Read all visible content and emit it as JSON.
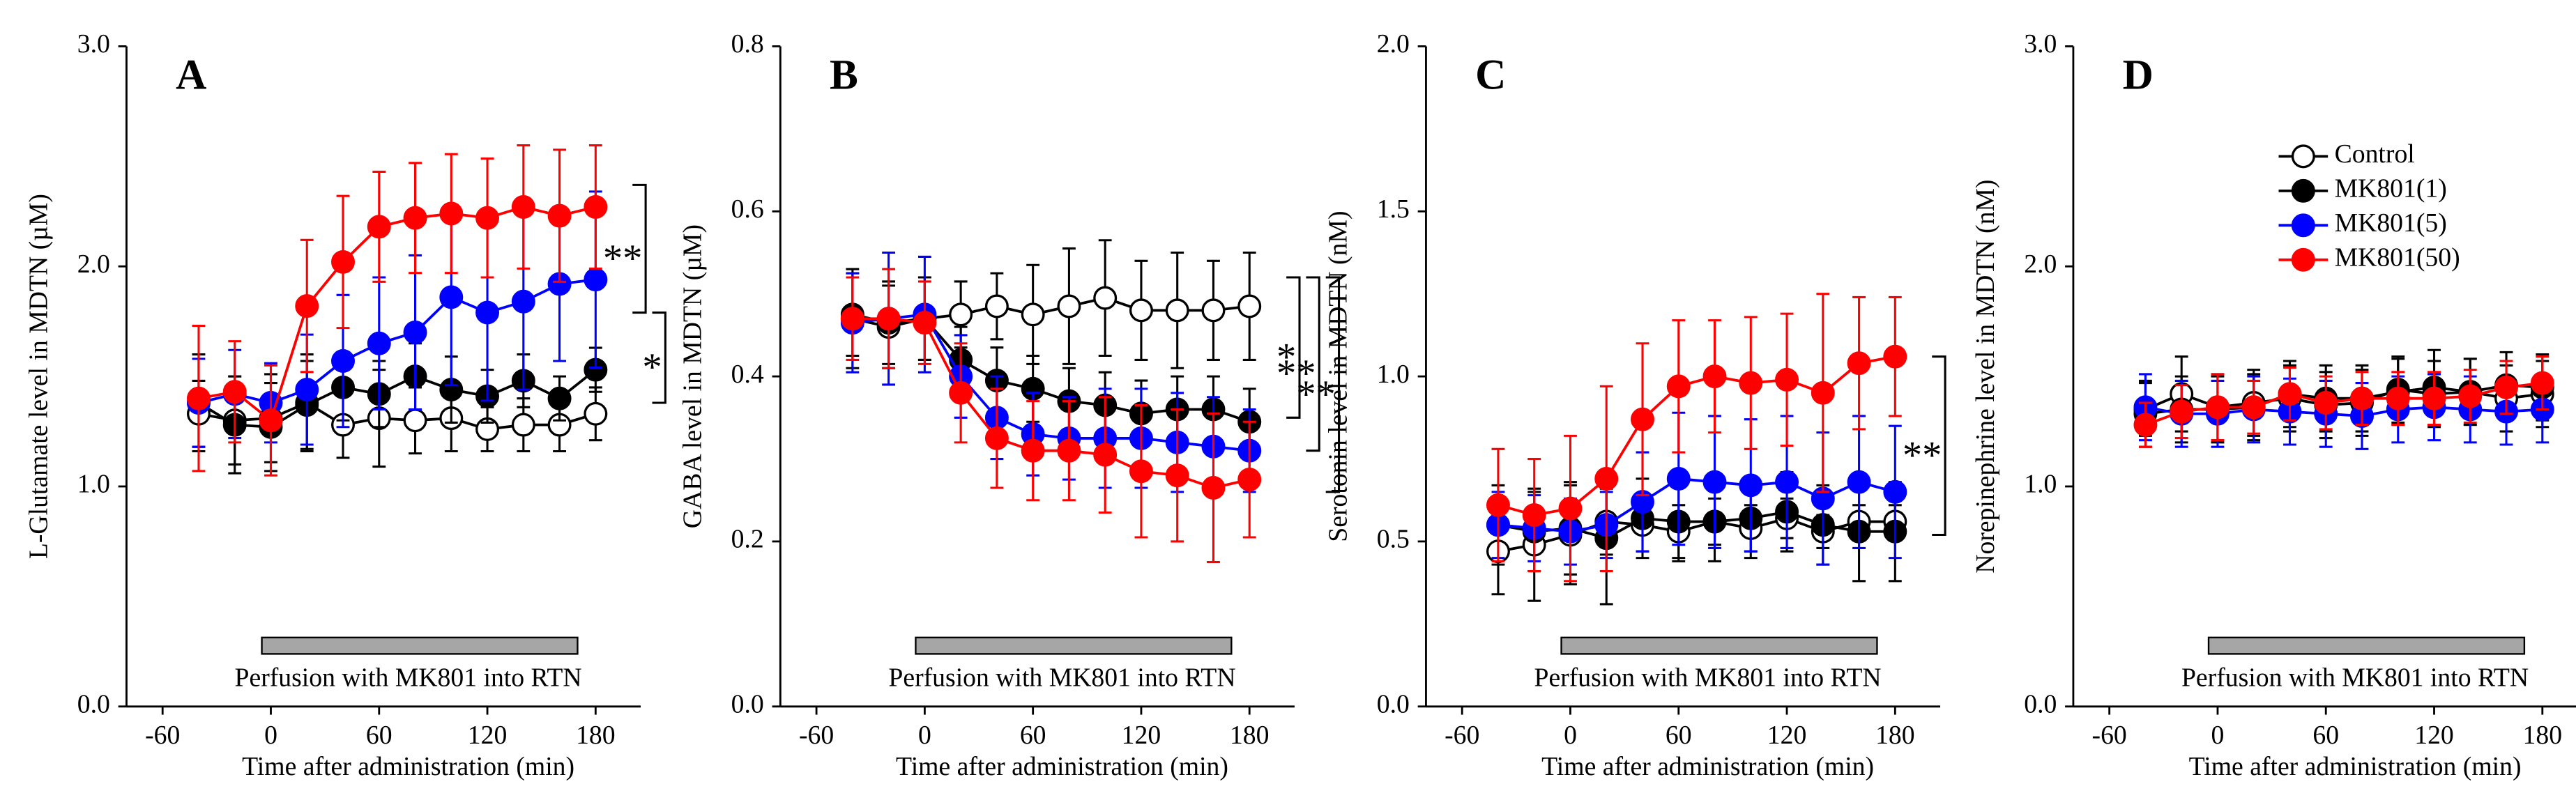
{
  "chart_data": [
    {
      "type": "line",
      "label": "A",
      "ylabel": "L-Glutamate level in MDTN (µM)",
      "xlabel": "Time after administration (min)",
      "x": [
        -40,
        -20,
        0,
        20,
        40,
        60,
        80,
        100,
        120,
        140,
        160,
        180
      ],
      "xlim": [
        -80,
        205
      ],
      "xticks": [
        -60,
        0,
        60,
        120,
        180
      ],
      "ylim": [
        0,
        3
      ],
      "yticks": [
        {
          "value": 0,
          "label": "0.0"
        },
        {
          "value": 1,
          "label": "1.0"
        },
        {
          "value": 2,
          "label": "2.0"
        },
        {
          "value": 3,
          "label": "3.0"
        }
      ],
      "series": [
        {
          "color": "#000000",
          "marker_fill": "#ffffff",
          "values": [
            1.33,
            1.3,
            1.31,
            1.38,
            1.28,
            1.31,
            1.3,
            1.31,
            1.26,
            1.28,
            1.28,
            1.33
          ],
          "errors": [
            0.15,
            0.2,
            0.2,
            0.22,
            0.15,
            0.22,
            0.15,
            0.15,
            0.1,
            0.12,
            0.12,
            0.12
          ]
        },
        {
          "color": "#000000",
          "marker_fill": "#000000",
          "values": [
            1.38,
            1.28,
            1.27,
            1.37,
            1.45,
            1.42,
            1.5,
            1.44,
            1.41,
            1.48,
            1.4,
            1.53
          ],
          "errors": [
            0.22,
            0.22,
            0.2,
            0.2,
            0.15,
            0.15,
            0.15,
            0.15,
            0.12,
            0.12,
            0.1,
            0.1
          ]
        },
        {
          "color": "#0000ff",
          "marker_fill": "#0000ff",
          "values": [
            1.38,
            1.42,
            1.38,
            1.44,
            1.57,
            1.65,
            1.7,
            1.86,
            1.79,
            1.84,
            1.92,
            1.94
          ],
          "errors": [
            0.2,
            0.2,
            0.18,
            0.25,
            0.3,
            0.3,
            0.35,
            0.4,
            0.4,
            0.4,
            0.35,
            0.4
          ]
        },
        {
          "color": "#ff0000",
          "marker_fill": "#ff0000",
          "values": [
            1.4,
            1.43,
            1.3,
            1.82,
            2.02,
            2.18,
            2.22,
            2.24,
            2.22,
            2.27,
            2.23,
            2.27
          ],
          "errors": [
            0.33,
            0.23,
            0.25,
            0.3,
            0.3,
            0.25,
            0.25,
            0.27,
            0.27,
            0.28,
            0.3,
            0.28
          ]
        }
      ],
      "perfusion": {
        "range": [
          -5,
          170
        ],
        "label": "Perfusion with MK801 into RTN"
      },
      "significance": [
        {
          "text": "**",
          "y": [
            2.37,
            1.79
          ]
        },
        {
          "text": "*",
          "y": [
            1.79,
            1.38
          ]
        }
      ]
    },
    {
      "type": "line",
      "label": "B",
      "ylabel": "GABA level in MDTN (µM)",
      "xlabel": "Time after administration (min)",
      "x": [
        -40,
        -20,
        0,
        20,
        40,
        60,
        80,
        100,
        120,
        140,
        160,
        180
      ],
      "xlim": [
        -80,
        205
      ],
      "xticks": [
        -60,
        0,
        60,
        120,
        180
      ],
      "ylim": [
        0,
        0.8
      ],
      "yticks": [
        {
          "value": 0,
          "label": "0.0"
        },
        0.2,
        0.4,
        0.6,
        0.8
      ],
      "series": [
        {
          "color": "#000000",
          "marker_fill": "#ffffff",
          "values": [
            0.47,
            0.46,
            0.47,
            0.475,
            0.485,
            0.475,
            0.485,
            0.495,
            0.48,
            0.48,
            0.48,
            0.485
          ],
          "errors": [
            0.06,
            0.05,
            0.05,
            0.04,
            0.04,
            0.06,
            0.07,
            0.07,
            0.06,
            0.07,
            0.06,
            0.065
          ]
        },
        {
          "color": "#000000",
          "marker_fill": "#000000",
          "values": [
            0.475,
            0.465,
            0.47,
            0.42,
            0.395,
            0.385,
            0.37,
            0.365,
            0.355,
            0.36,
            0.36,
            0.345
          ],
          "errors": [
            0.05,
            0.05,
            0.05,
            0.04,
            0.04,
            0.04,
            0.04,
            0.04,
            0.04,
            0.04,
            0.04,
            0.04
          ]
        },
        {
          "color": "#0000ff",
          "marker_fill": "#0000ff",
          "values": [
            0.465,
            0.47,
            0.475,
            0.4,
            0.35,
            0.33,
            0.325,
            0.325,
            0.325,
            0.32,
            0.315,
            0.31
          ],
          "errors": [
            0.06,
            0.08,
            0.07,
            0.05,
            0.05,
            0.05,
            0.05,
            0.06,
            0.06,
            0.06,
            0.06,
            0.05
          ]
        },
        {
          "color": "#ff0000",
          "marker_fill": "#ff0000",
          "values": [
            0.47,
            0.47,
            0.465,
            0.38,
            0.325,
            0.31,
            0.31,
            0.305,
            0.285,
            0.28,
            0.265,
            0.275
          ],
          "errors": [
            0.05,
            0.06,
            0.05,
            0.06,
            0.06,
            0.06,
            0.06,
            0.07,
            0.08,
            0.08,
            0.09,
            0.07
          ]
        }
      ],
      "perfusion": {
        "range": [
          -5,
          170
        ],
        "label": "Perfusion with MK801 into RTN"
      },
      "significance": [
        {
          "text": "*",
          "y": [
            0.52,
            0.35
          ]
        },
        {
          "text": "**",
          "y": [
            0.52,
            0.31
          ]
        },
        {
          "text": "**",
          "y": [
            0.52,
            0.26
          ]
        }
      ]
    },
    {
      "type": "line",
      "label": "C",
      "ylabel": "Serotonin level in MDTN (nM)",
      "xlabel": "Time after administration (min)",
      "x": [
        -40,
        -20,
        0,
        20,
        40,
        60,
        80,
        100,
        120,
        140,
        160,
        180
      ],
      "xlim": [
        -80,
        205
      ],
      "xticks": [
        -60,
        0,
        60,
        120,
        180
      ],
      "ylim": [
        0,
        2
      ],
      "yticks": [
        {
          "value": 0,
          "label": "0.0"
        },
        0.5,
        {
          "value": 1,
          "label": "1.0"
        },
        1.5,
        {
          "value": 2,
          "label": "2.0"
        }
      ],
      "series": [
        {
          "color": "#000000",
          "marker_fill": "#ffffff",
          "values": [
            0.47,
            0.49,
            0.52,
            0.56,
            0.55,
            0.53,
            0.56,
            0.54,
            0.57,
            0.53,
            0.56,
            0.56
          ],
          "errors": [
            0.13,
            0.17,
            0.15,
            0.1,
            0.08,
            0.08,
            0.07,
            0.07,
            0.06,
            0.05,
            0.05,
            0.05
          ]
        },
        {
          "color": "#000000",
          "marker_fill": "#000000",
          "values": [
            0.55,
            0.53,
            0.54,
            0.51,
            0.57,
            0.56,
            0.56,
            0.57,
            0.59,
            0.55,
            0.53,
            0.53
          ],
          "errors": [
            0.12,
            0.12,
            0.14,
            0.2,
            0.12,
            0.12,
            0.12,
            0.12,
            0.12,
            0.12,
            0.15,
            0.15
          ]
        },
        {
          "color": "#0000ff",
          "marker_fill": "#0000ff",
          "values": [
            0.55,
            0.54,
            0.53,
            0.55,
            0.62,
            0.69,
            0.68,
            0.67,
            0.68,
            0.63,
            0.68,
            0.65
          ],
          "errors": [
            0.1,
            0.1,
            0.1,
            0.1,
            0.15,
            0.2,
            0.2,
            0.2,
            0.2,
            0.2,
            0.2,
            0.2
          ]
        },
        {
          "color": "#ff0000",
          "marker_fill": "#ff0000",
          "values": [
            0.61,
            0.58,
            0.6,
            0.69,
            0.87,
            0.97,
            1.0,
            0.98,
            0.99,
            0.95,
            1.04,
            1.06
          ],
          "errors": [
            0.17,
            0.17,
            0.22,
            0.28,
            0.23,
            0.2,
            0.17,
            0.2,
            0.2,
            0.3,
            0.2,
            0.18
          ]
        }
      ],
      "perfusion": {
        "range": [
          -5,
          170
        ],
        "label": "Perfusion with MK801 into RTN"
      },
      "significance": [
        {
          "text": "**",
          "y": [
            1.06,
            0.52
          ]
        }
      ]
    },
    {
      "type": "line",
      "label": "D",
      "ylabel": "Norepinephrine level in MDTN (nM)",
      "xlabel": "Time after administration (min)",
      "x": [
        -40,
        -20,
        0,
        20,
        40,
        60,
        80,
        100,
        120,
        140,
        160,
        180
      ],
      "xlim": [
        -80,
        205
      ],
      "xticks": [
        -60,
        0,
        60,
        120,
        180
      ],
      "ylim": [
        0,
        3
      ],
      "yticks": [
        {
          "value": 0,
          "label": "0.0"
        },
        {
          "value": 1,
          "label": "1.0"
        },
        {
          "value": 2,
          "label": "2.0"
        },
        {
          "value": 3,
          "label": "3.0"
        }
      ],
      "legend": "upper right",
      "series": [
        {
          "name": "Control",
          "color": "#000000",
          "marker_fill": "#ffffff",
          "values": [
            1.35,
            1.42,
            1.36,
            1.38,
            1.4,
            1.37,
            1.38,
            1.44,
            1.42,
            1.43,
            1.4,
            1.42
          ],
          "errors": [
            0.12,
            0.17,
            0.15,
            0.15,
            0.15,
            0.15,
            0.15,
            0.15,
            0.15,
            0.15,
            0.15,
            0.15
          ]
        },
        {
          "name": "MK801(1)",
          "color": "#000000",
          "marker_fill": "#000000",
          "values": [
            1.33,
            1.35,
            1.35,
            1.36,
            1.42,
            1.4,
            1.4,
            1.43,
            1.45,
            1.43,
            1.46,
            1.45
          ],
          "errors": [
            0.15,
            0.15,
            0.15,
            0.15,
            0.15,
            0.15,
            0.15,
            0.15,
            0.17,
            0.15,
            0.15,
            0.15
          ]
        },
        {
          "name": "MK801(5)",
          "color": "#0000ff",
          "marker_fill": "#0000ff",
          "values": [
            1.36,
            1.33,
            1.33,
            1.35,
            1.34,
            1.33,
            1.32,
            1.35,
            1.36,
            1.35,
            1.34,
            1.35
          ],
          "errors": [
            0.15,
            0.15,
            0.15,
            0.15,
            0.15,
            0.15,
            0.15,
            0.15,
            0.15,
            0.15,
            0.15,
            0.15
          ]
        },
        {
          "name": "MK801(50)",
          "color": "#ff0000",
          "marker_fill": "#ff0000",
          "values": [
            1.28,
            1.34,
            1.36,
            1.36,
            1.42,
            1.38,
            1.4,
            1.4,
            1.4,
            1.41,
            1.45,
            1.47
          ],
          "errors": [
            0.1,
            0.12,
            0.15,
            0.12,
            0.12,
            0.12,
            0.12,
            0.12,
            0.12,
            0.12,
            0.12,
            0.12
          ]
        }
      ],
      "perfusion": {
        "range": [
          -5,
          170
        ],
        "label": "Perfusion with MK801 into RTN"
      },
      "significance": []
    }
  ]
}
